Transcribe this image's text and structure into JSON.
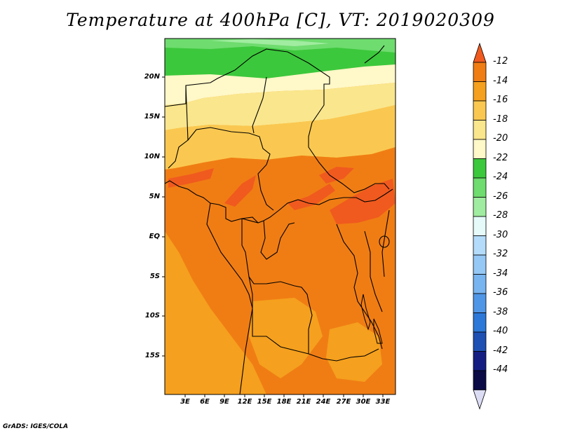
{
  "title": "Temperature at 400hPa [C], VT: 2019020309",
  "credit": "GrADS: IGES/COLA",
  "map": {
    "lat_labels": [
      "20N",
      "15N",
      "10N",
      "5N",
      "EQ",
      "5S",
      "10S",
      "15S"
    ],
    "lon_labels": [
      "3E",
      "6E",
      "9E",
      "12E",
      "15E",
      "18E",
      "21E",
      "24E",
      "27E",
      "30E",
      "33E"
    ]
  },
  "colorbar": {
    "labels": [
      "-12",
      "-14",
      "-16",
      "-18",
      "-20",
      "-22",
      "-24",
      "-26",
      "-28",
      "-30",
      "-32",
      "-34",
      "-36",
      "-38",
      "-40",
      "-42",
      "-44"
    ],
    "colors": [
      "#f05a1e",
      "#f07d14",
      "#f5a01e",
      "#fac850",
      "#fae68c",
      "#fff8c8",
      "#3cc83c",
      "#6edc6e",
      "#a0eca0",
      "#e6fafa",
      "#b4dcfa",
      "#96c8f5",
      "#78b4f0",
      "#5096e6",
      "#2c78d8",
      "#1e50b4",
      "#141e82",
      "#0a0a46",
      "#dcdcf5"
    ]
  }
}
